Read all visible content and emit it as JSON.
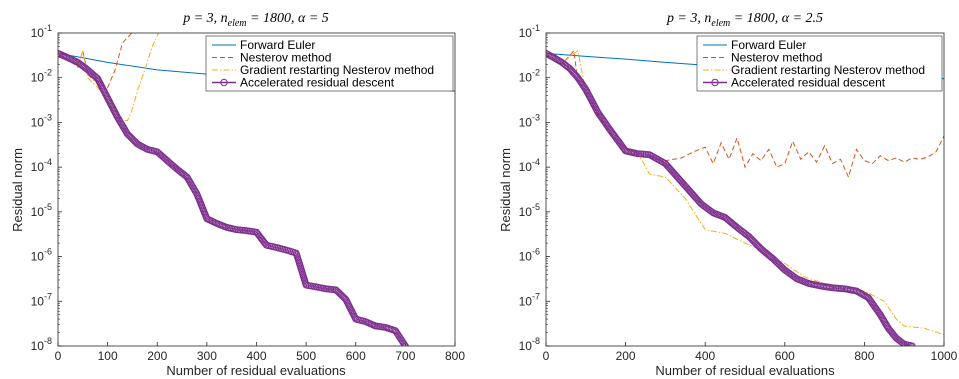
{
  "chart_data": [
    {
      "type": "line",
      "title": "p = 3, n_elem = 1800, α = 5",
      "title_parts": {
        "p": "p = 3, ",
        "n": "n",
        "sub": "elem",
        "rest": " = 1800, α = 5"
      },
      "xlabel": "Number of residual evaluations",
      "ylabel": "Residual norm",
      "xlim": [
        0,
        800
      ],
      "ylim": [
        1e-08,
        0.1
      ],
      "yscale": "log",
      "x_ticks": [
        "0",
        "100",
        "200",
        "300",
        "400",
        "500",
        "600",
        "700",
        "800"
      ],
      "y_tick_exponents": [
        "-8",
        "-7",
        "-6",
        "-5",
        "-4",
        "-3",
        "-2",
        "-1"
      ],
      "y_tick_base": "10",
      "grid": false,
      "legend_position": "top-right",
      "series": [
        {
          "name": "Forward Euler",
          "color": "#0072BD",
          "style": "solid",
          "marker": "none",
          "x": [
            0,
            50,
            100,
            200,
            300,
            400,
            500,
            600,
            700,
            800
          ],
          "y": [
            0.035,
            0.028,
            0.022,
            0.015,
            0.012,
            0.0105,
            0.009,
            0.0075,
            0.0062,
            0.005
          ]
        },
        {
          "name": "Nesterov method",
          "color": "#D95319",
          "style": "dashed",
          "marker": "none",
          "x": [
            0,
            20,
            40,
            50,
            60,
            70,
            85,
            100,
            115,
            130,
            145,
            160
          ],
          "y": [
            0.035,
            0.025,
            0.018,
            0.04,
            0.012,
            0.009,
            0.008,
            0.006,
            0.015,
            0.06,
            0.09,
            0.15
          ]
        },
        {
          "name": "Gradient restarting Nesterov method",
          "color": "#EDB120",
          "style": "dashdot",
          "marker": "none",
          "x": [
            0,
            20,
            40,
            50,
            60,
            80,
            100,
            115,
            130,
            140,
            150,
            160,
            175,
            190,
            210
          ],
          "y": [
            0.035,
            0.025,
            0.017,
            0.04,
            0.01,
            0.006,
            0.003,
            0.0017,
            0.0011,
            0.0011,
            0.002,
            0.005,
            0.015,
            0.05,
            0.15
          ]
        },
        {
          "name": "Accelerated residual descent",
          "color": "#7E2F8E",
          "style": "solid",
          "marker": "circle",
          "x": [
            0,
            20,
            40,
            60,
            80,
            100,
            120,
            140,
            160,
            180,
            200,
            220,
            240,
            260,
            280,
            300,
            320,
            340,
            360,
            380,
            400,
            420,
            440,
            460,
            480,
            500,
            520,
            540,
            560,
            580,
            600,
            620,
            640,
            660,
            680,
            700
          ],
          "y": [
            0.035,
            0.028,
            0.022,
            0.015,
            0.0095,
            0.0035,
            0.0013,
            0.00055,
            0.00033,
            0.00025,
            0.00022,
            0.00014,
            9e-05,
            6e-05,
            2.5e-05,
            7e-06,
            5.5e-06,
            4.5e-06,
            4e-06,
            3.8e-06,
            3.5e-06,
            1.8e-06,
            1.6e-06,
            1.4e-06,
            1.2e-06,
            2.3e-07,
            2.1e-07,
            1.9e-07,
            1.8e-07,
            1.1e-07,
            4e-08,
            3.5e-08,
            2.8e-08,
            2.6e-08,
            2.2e-08,
            1e-08
          ]
        }
      ]
    },
    {
      "type": "line",
      "title": "p = 3, n_elem = 1800, α = 2.5",
      "title_parts": {
        "p": "p = 3, ",
        "n": "n",
        "sub": "elem",
        "rest": " = 1800, α = 2.5"
      },
      "xlabel": "Number of residual evaluations",
      "ylabel": "Residual norm",
      "xlim": [
        0,
        1000
      ],
      "ylim": [
        1e-08,
        0.1
      ],
      "yscale": "log",
      "x_ticks": [
        "0",
        "200",
        "400",
        "600",
        "800",
        "1000"
      ],
      "y_tick_exponents": [
        "-8",
        "-7",
        "-6",
        "-5",
        "-4",
        "-3",
        "-2",
        "-1"
      ],
      "y_tick_base": "10",
      "grid": false,
      "legend_position": "top-right",
      "series": [
        {
          "name": "Forward Euler",
          "color": "#0072BD",
          "style": "solid",
          "marker": "none",
          "x": [
            0,
            100,
            200,
            300,
            400,
            500,
            600,
            700,
            800,
            900,
            1000
          ],
          "y": [
            0.035,
            0.03,
            0.026,
            0.022,
            0.019,
            0.017,
            0.015,
            0.013,
            0.0115,
            0.0105,
            0.0095
          ]
        },
        {
          "name": "Nesterov method",
          "color": "#D95319",
          "style": "dashed",
          "marker": "none",
          "x": [
            0,
            40,
            70,
            80,
            100,
            130,
            160,
            200,
            250,
            300,
            340,
            370,
            400,
            420,
            440,
            460,
            480,
            500,
            520,
            540,
            560,
            580,
            600,
            620,
            640,
            660,
            680,
            700,
            720,
            740,
            760,
            780,
            800,
            820,
            840,
            860,
            880,
            900,
            920,
            940,
            960,
            980,
            1000
          ],
          "y": [
            0.035,
            0.02,
            0.04,
            0.008,
            0.004,
            0.0015,
            0.0006,
            0.00025,
            0.00017,
            0.00014,
            0.00016,
            0.00022,
            0.00028,
            0.00012,
            0.00035,
            0.00015,
            0.00045,
            0.0001,
            0.0002,
            0.00014,
            0.00025,
            0.0001,
            0.00012,
            0.00038,
            0.00015,
            0.00022,
            0.00013,
            0.0003,
            0.00012,
            0.00015,
            6e-05,
            0.00025,
            0.00014,
            0.00012,
            0.00018,
            0.00014,
            0.00016,
            0.00013,
            0.00016,
            0.00015,
            0.00017,
            0.00022,
            0.0005
          ]
        },
        {
          "name": "Gradient restarting Nesterov method",
          "color": "#EDB120",
          "style": "dashdot",
          "marker": "none",
          "x": [
            0,
            40,
            60,
            80,
            100,
            130,
            160,
            200,
            240,
            260,
            300,
            350,
            400,
            450,
            500,
            550,
            600,
            650,
            700,
            750,
            800,
            850,
            880,
            900,
            950,
            1000
          ],
          "y": [
            0.035,
            0.02,
            0.03,
            0.04,
            0.005,
            0.0017,
            0.0006,
            0.00025,
            0.00015,
            7e-05,
            6e-05,
            2e-05,
            4e-06,
            3.3e-06,
            2e-06,
            1.3e-06,
            7e-07,
            3.5e-07,
            2.5e-07,
            2e-07,
            1.7e-07,
            1e-07,
            4e-08,
            2.8e-08,
            2.5e-08,
            1.8e-08
          ]
        },
        {
          "name": "Accelerated residual descent",
          "color": "#7E2F8E",
          "style": "solid",
          "marker": "circle",
          "x": [
            0,
            20,
            40,
            60,
            80,
            100,
            130,
            160,
            200,
            230,
            260,
            300,
            330,
            360,
            390,
            420,
            450,
            480,
            510,
            540,
            570,
            600,
            630,
            660,
            690,
            720,
            750,
            780,
            810,
            840,
            860,
            880,
            900,
            920
          ],
          "y": [
            0.035,
            0.028,
            0.022,
            0.016,
            0.01,
            0.0055,
            0.0017,
            0.0007,
            0.00023,
            0.0002,
            0.00019,
            0.00012,
            6e-05,
            3e-05,
            1.5e-05,
            9.5e-06,
            7.5e-06,
            4.5e-06,
            2.8e-06,
            1.5e-06,
            9e-07,
            5e-07,
            3.2e-07,
            2.5e-07,
            2.2e-07,
            2e-07,
            1.9e-07,
            1.7e-07,
            1.2e-07,
            5e-08,
            2.5e-08,
            1.5e-08,
            1.1e-08,
            1e-08
          ]
        }
      ]
    }
  ]
}
